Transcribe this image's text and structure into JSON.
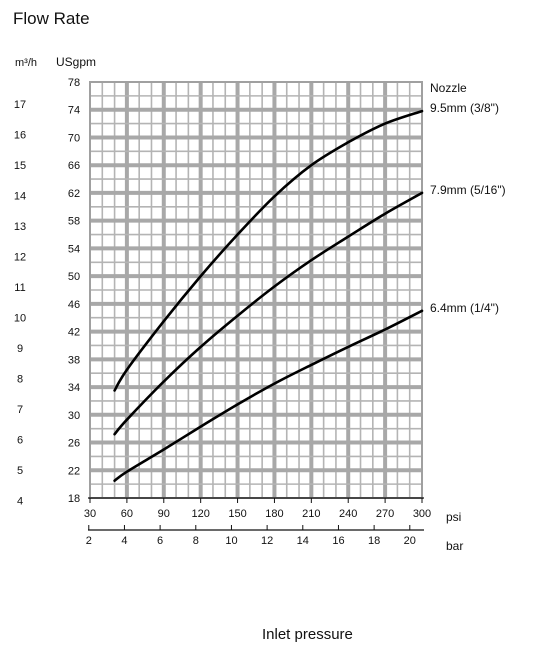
{
  "chart_data": {
    "type": "line",
    "title": "Flow Rate",
    "xlabel": "Inlet pressure",
    "y_unit_metric": "m³/h",
    "y_unit_us": "USgpm",
    "x_unit_psi": "psi",
    "x_unit_bar": "bar",
    "legend_title": "Nozzle",
    "grid": true,
    "xlim_psi": [
      30,
      300
    ],
    "ylim_usgpm": [
      18,
      78
    ],
    "x_ticks_psi": [
      "30",
      "60",
      "90",
      "120",
      "150",
      "180",
      "210",
      "240",
      "270",
      "300"
    ],
    "x_ticks_bar": [
      "2",
      "4",
      "6",
      "8",
      "10",
      "12",
      "14",
      "16",
      "18",
      "20"
    ],
    "y_ticks_usgpm": [
      "18",
      "22",
      "26",
      "30",
      "34",
      "38",
      "42",
      "46",
      "50",
      "54",
      "58",
      "62",
      "66",
      "70",
      "74",
      "78"
    ],
    "y_ticks_m3h": [
      "4",
      "5",
      "6",
      "7",
      "8",
      "9",
      "10",
      "11",
      "12",
      "13",
      "14",
      "15",
      "16",
      "17"
    ],
    "series": [
      {
        "name": "9.5mm  (3/8\")",
        "x_psi": [
          50,
          60,
          90,
          120,
          150,
          180,
          210,
          240,
          270,
          300
        ],
        "y_usgpm": [
          33.5,
          36.5,
          43.5,
          50,
          56,
          61.5,
          66,
          69.3,
          72,
          73.8
        ]
      },
      {
        "name": "7.9mm  (5/16\")",
        "x_psi": [
          50,
          60,
          90,
          120,
          150,
          180,
          210,
          240,
          270,
          300
        ],
        "y_usgpm": [
          27.2,
          29.3,
          34.8,
          39.8,
          44.3,
          48.5,
          52.3,
          55.7,
          59,
          62
        ]
      },
      {
        "name": "6.4mm  (1/4\")",
        "x_psi": [
          50,
          60,
          90,
          120,
          150,
          180,
          210,
          240,
          270,
          300
        ],
        "y_usgpm": [
          20.5,
          21.8,
          25,
          28.3,
          31.5,
          34.5,
          37.2,
          39.8,
          42.3,
          45
        ]
      }
    ]
  }
}
